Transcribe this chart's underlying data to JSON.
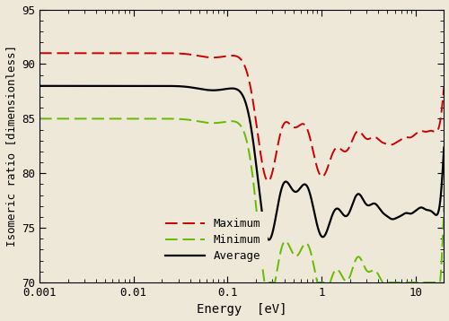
{
  "xlim": [
    0.001,
    20
  ],
  "ylim": [
    70,
    95
  ],
  "xlabel": "Energy  [eV]",
  "ylabel": "Isomeric ratio [dimensionless]",
  "avg_base": 88.0,
  "max_base": 91.0,
  "min_base": 85.0,
  "legend_labels": [
    "Average",
    "Maximum",
    "Minimum"
  ],
  "avg_color": "#000000",
  "max_color": "#cc0000",
  "min_color": "#66bb00",
  "bg_color": "#ede8d8",
  "yticks": [
    70,
    75,
    80,
    85,
    90,
    95
  ],
  "xticks_major": [
    0.001,
    0.01,
    0.1,
    1,
    10
  ],
  "xtick_labels": [
    "0.001",
    "0.01",
    "0.1",
    "1",
    "10"
  ],
  "figsize": [
    5.0,
    3.58
  ],
  "dpi": 100
}
